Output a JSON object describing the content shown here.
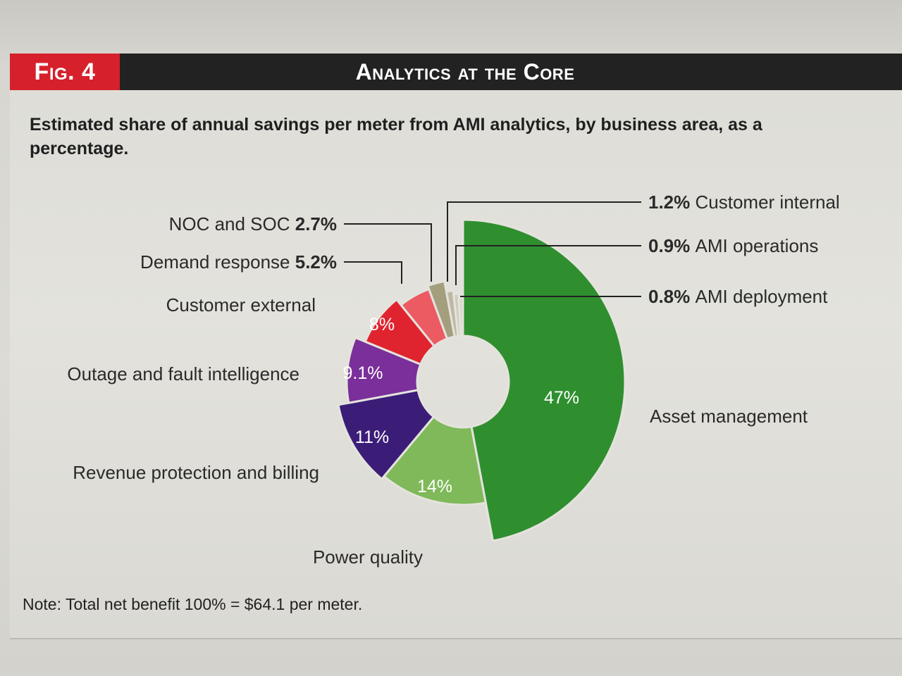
{
  "header": {
    "fig_label": "Fig. 4",
    "title": "Analytics at the Core"
  },
  "subtitle": "Estimated share of annual savings per meter from AMI analytics, by business area, as a percentage.",
  "note": "Note: Total net benefit 100% = $64.1 per meter.",
  "chart_data": {
    "type": "pie",
    "title": "Analytics at the Core",
    "subtitle": "Estimated share of annual savings per meter from AMI analytics, by business area, as a percentage.",
    "unit": "%",
    "slices": [
      {
        "label": "Asset management",
        "value": 47,
        "value_label": "47%",
        "color": "#2f8f2f"
      },
      {
        "label": "Power quality",
        "value": 14,
        "value_label": "14%",
        "color": "#7fb95a"
      },
      {
        "label": "Revenue protection and billing",
        "value": 11,
        "value_label": "11%",
        "color": "#3b1d78"
      },
      {
        "label": "Outage and fault intelligence",
        "value": 9.1,
        "value_label": "9.1%",
        "color": "#7a2f9a"
      },
      {
        "label": "Customer external",
        "value": 8,
        "value_label": "8%",
        "color": "#e0242f"
      },
      {
        "label": "Demand response",
        "value": 5.2,
        "value_label": "5.2%",
        "color": "#ec5a62"
      },
      {
        "label": "NOC and SOC",
        "value": 2.7,
        "value_label": "2.7%",
        "color": "#a39f7d"
      },
      {
        "label": "Customer internal",
        "value": 1.2,
        "value_label": "1.2%",
        "color": "#bdb9a4"
      },
      {
        "label": "AMI operations",
        "value": 0.9,
        "value_label": "0.9%",
        "color": "#cfcbb8"
      },
      {
        "label": "AMI deployment",
        "value": 0.8,
        "value_label": "0.8%",
        "color": "#d9d6c6"
      }
    ]
  }
}
